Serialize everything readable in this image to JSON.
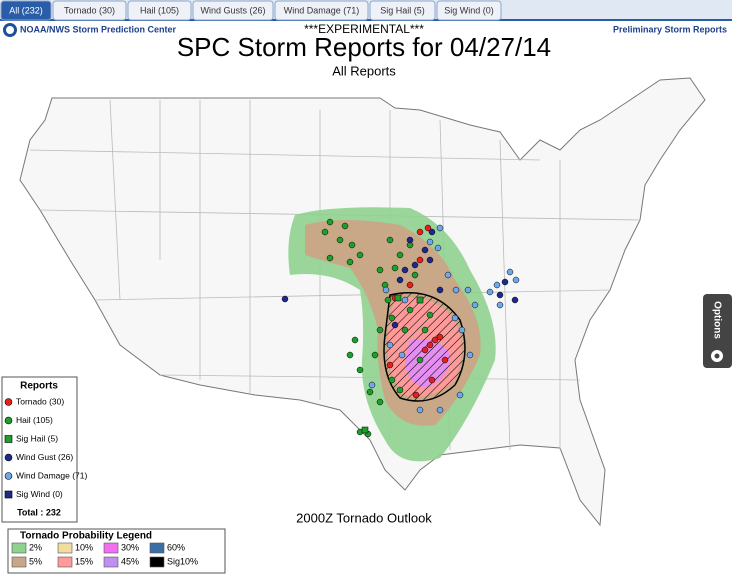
{
  "tabs": [
    "All (232)",
    "Tornado (30)",
    "Hail (105)",
    "Wind Gusts (26)",
    "Wind Damage (71)",
    "Sig Hail (5)",
    "Sig Wind (0)"
  ],
  "header": {
    "org": "NOAA/NWS Storm Prediction Center",
    "flag": "***EXPERIMENTAL***",
    "right": "Preliminary Storm Reports",
    "title": "SPC Storm Reports for 04/27/14",
    "subtitle": "All Reports"
  },
  "reports_legend": {
    "title": "Reports",
    "items": [
      {
        "label": "Tornado (30)",
        "color": "#e8201c",
        "shape": "circle"
      },
      {
        "label": "Hail (105)",
        "color": "#1e9e2a",
        "shape": "circle"
      },
      {
        "label": "Sig Hail (5)",
        "color": "#1e9e2a",
        "shape": "square"
      },
      {
        "label": "Wind Gust (26)",
        "color": "#1c2a8c",
        "shape": "circle"
      },
      {
        "label": "Wind Damage (71)",
        "color": "#6fa8e8",
        "shape": "circle"
      },
      {
        "label": "Sig Wind (0)",
        "color": "#1c2a8c",
        "shape": "square"
      }
    ],
    "total": "Total : 232"
  },
  "outlook_title": "2000Z Tornado Outlook",
  "probability_legend": {
    "title": "Tornado Probability Legend",
    "items": [
      {
        "label": "2%",
        "color": "#8fd18f"
      },
      {
        "label": "10%",
        "color": "#f2dca0"
      },
      {
        "label": "30%",
        "color": "#f070f0"
      },
      {
        "label": "60%",
        "color": "#3a6ea5"
      },
      {
        "label": "5%",
        "color": "#c8a886"
      },
      {
        "label": "15%",
        "color": "#ff9a9a"
      },
      {
        "label": "45%",
        "color": "#c090f0"
      },
      {
        "label": "Sig10%",
        "color": "#000000"
      }
    ]
  },
  "options": "Options"
}
